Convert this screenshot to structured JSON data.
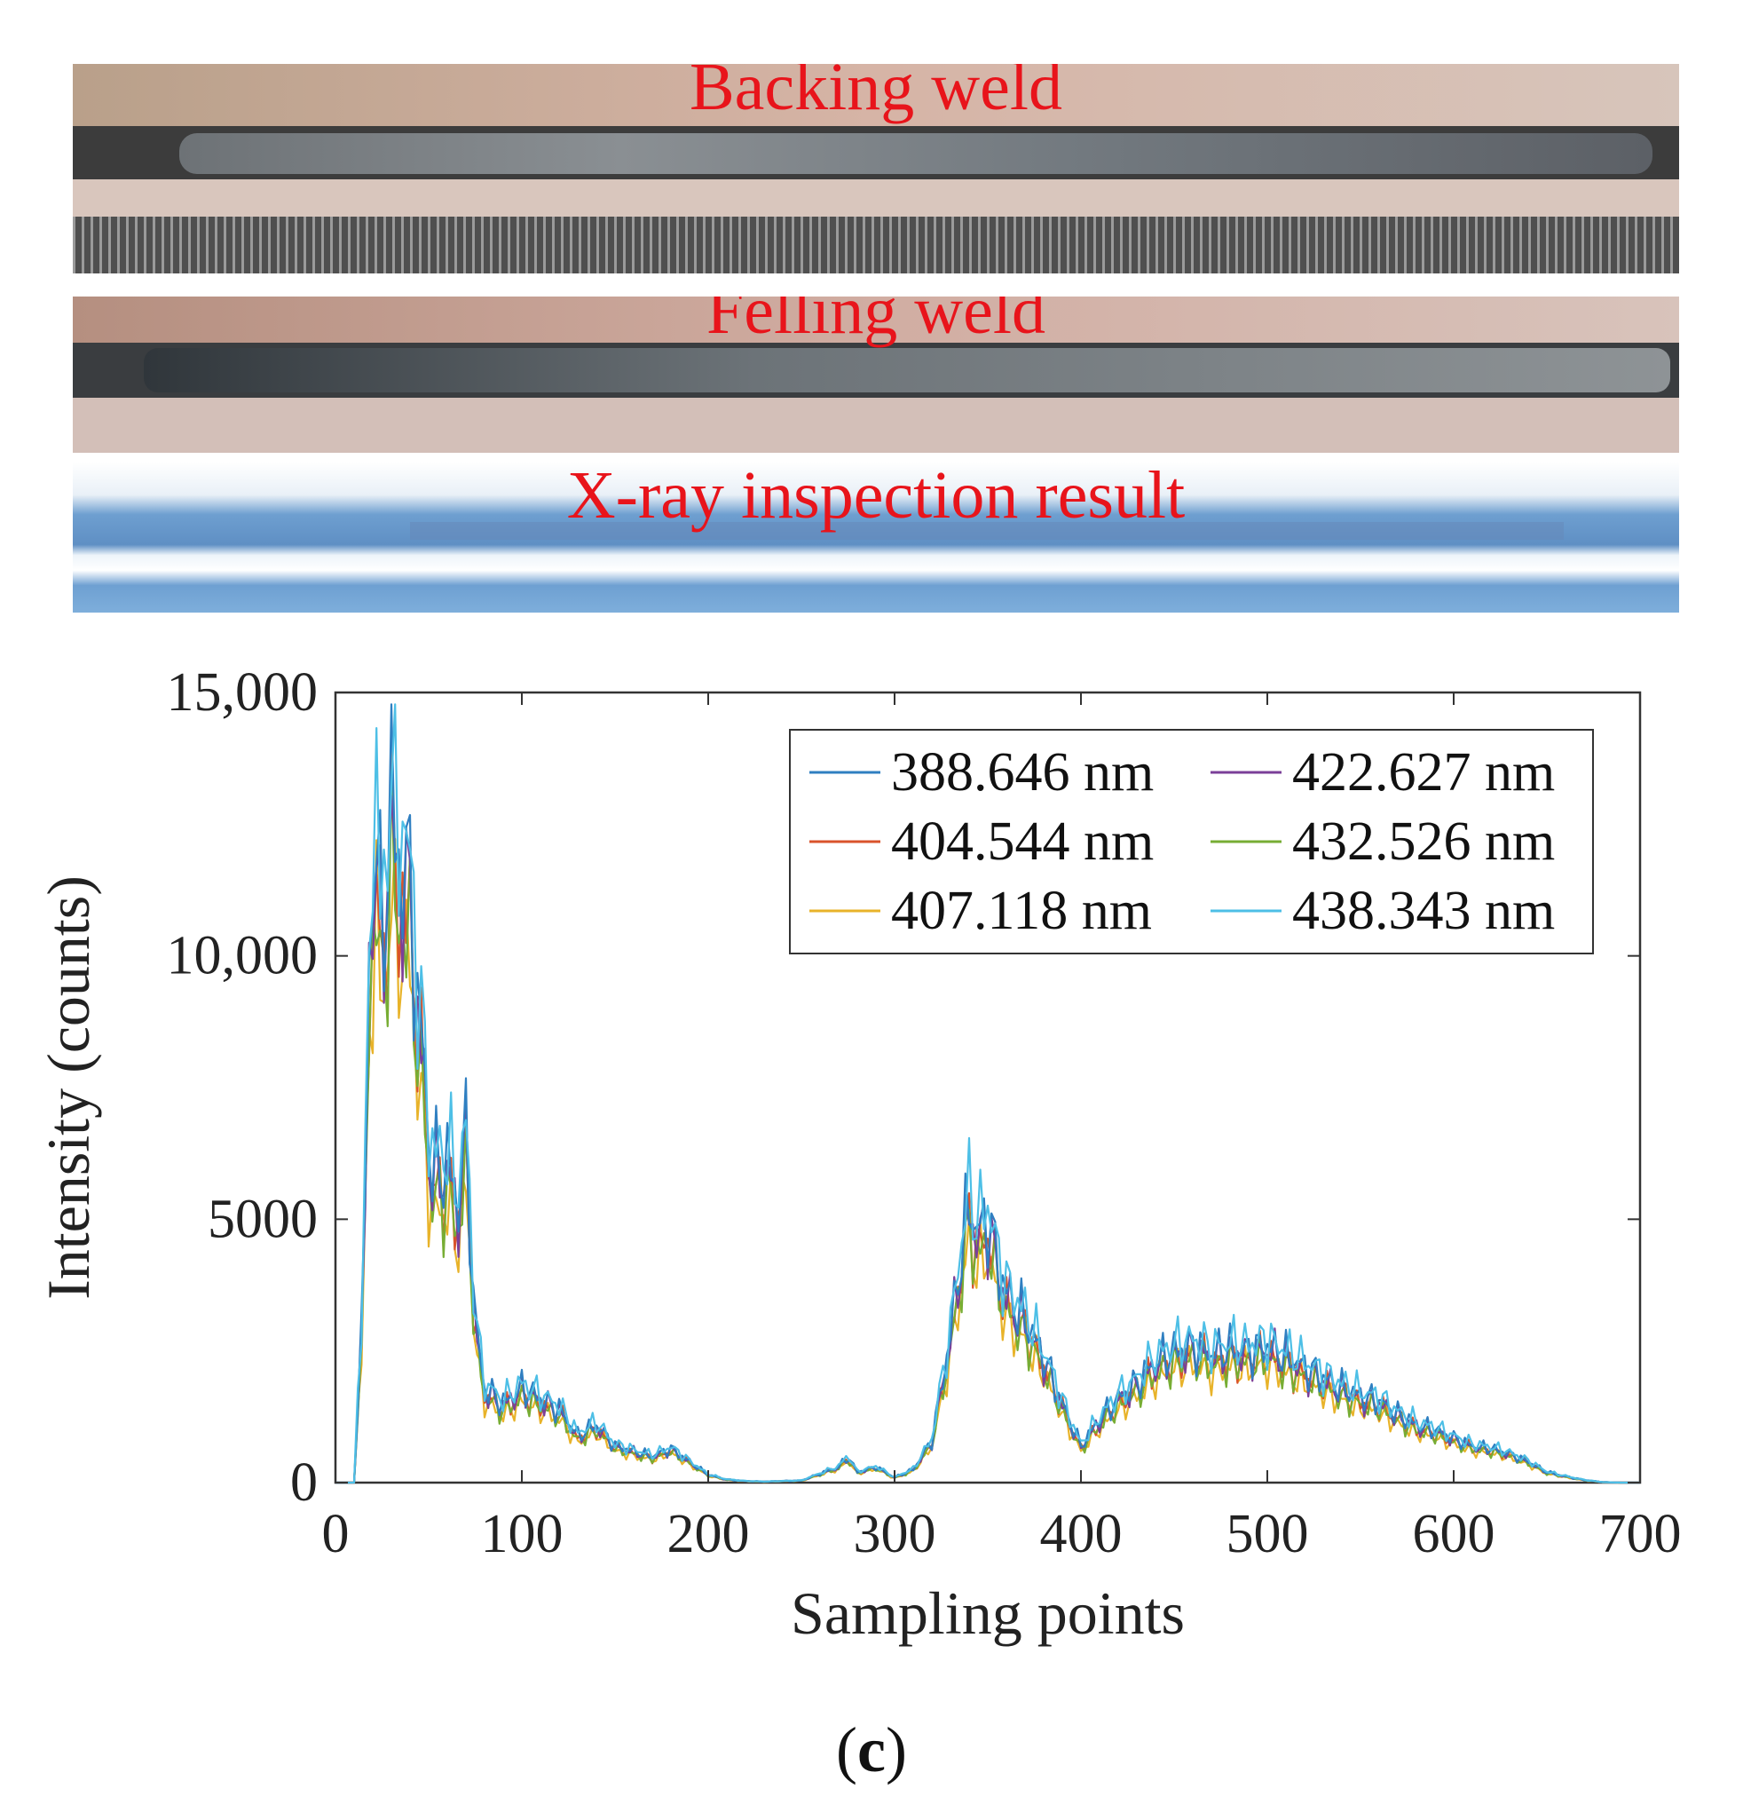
{
  "photos": {
    "backing_label": "Backing weld",
    "felling_label": "Felling weld",
    "xray_label": "X-ray inspection result"
  },
  "caption": {
    "open": "(",
    "letter": "c",
    "close": ")"
  },
  "colors": {
    "388.646": "#2f7fc1",
    "404.544": "#d9532b",
    "407.118": "#e8b32a",
    "422.627": "#7b3f98",
    "432.526": "#77ad34",
    "438.343": "#4dbfe6",
    "label_red": "#e8141b"
  },
  "chart_data": {
    "type": "line",
    "title": "",
    "xlabel": "Sampling points",
    "ylabel": "Intensity (counts)",
    "xlim": [
      0,
      700
    ],
    "ylim": [
      0,
      15000
    ],
    "xticks": [
      0,
      100,
      200,
      300,
      400,
      500,
      600,
      700
    ],
    "xtick_labels": [
      "0",
      "100",
      "200",
      "300",
      "400",
      "500",
      "600",
      "700"
    ],
    "yticks": [
      0,
      5000,
      10000,
      15000
    ],
    "ytick_labels": [
      "0",
      "5000",
      "10,000",
      "15,000"
    ],
    "legend_position": "top-right",
    "envelope": {
      "x": [
        0,
        10,
        15,
        18,
        20,
        22,
        25,
        28,
        30,
        33,
        36,
        40,
        45,
        50,
        55,
        60,
        65,
        70,
        75,
        80,
        90,
        100,
        110,
        120,
        130,
        140,
        150,
        160,
        170,
        180,
        190,
        200,
        210,
        220,
        230,
        250,
        270,
        275,
        280,
        290,
        300,
        310,
        320,
        330,
        335,
        340,
        345,
        350,
        355,
        360,
        370,
        380,
        390,
        400,
        410,
        420,
        430,
        440,
        450,
        460,
        470,
        480,
        490,
        500,
        510,
        520,
        530,
        540,
        550,
        560,
        570,
        580,
        590,
        600,
        610,
        620,
        630,
        640,
        650,
        660,
        670,
        680,
        690,
        700
      ],
      "y": [
        0,
        0,
        4000,
        9000,
        11500,
        13500,
        9000,
        12000,
        14000,
        10500,
        12500,
        11000,
        9000,
        6500,
        5800,
        6200,
        5200,
        6500,
        3000,
        1800,
        1500,
        1800,
        1600,
        1400,
        900,
        1100,
        700,
        600,
        500,
        650,
        400,
        150,
        60,
        30,
        20,
        40,
        300,
        500,
        200,
        300,
        100,
        250,
        800,
        2800,
        4200,
        5300,
        4700,
        5100,
        4200,
        3600,
        3100,
        2400,
        1500,
        700,
        1200,
        1600,
        1900,
        2300,
        2500,
        2600,
        2450,
        2550,
        2500,
        2600,
        2400,
        2200,
        2000,
        1800,
        1650,
        1550,
        1300,
        1100,
        1000,
        850,
        700,
        650,
        550,
        400,
        200,
        120,
        50,
        10,
        0,
        0
      ]
    },
    "series": [
      {
        "name": "388.646 nm",
        "scale": 1.0
      },
      {
        "name": "404.544 nm",
        "scale": 0.93
      },
      {
        "name": "407.118 nm",
        "scale": 0.86
      },
      {
        "name": "422.627 nm",
        "scale": 0.97
      },
      {
        "name": "432.526 nm",
        "scale": 0.9
      },
      {
        "name": "438.343 nm",
        "scale": 1.05
      }
    ]
  }
}
